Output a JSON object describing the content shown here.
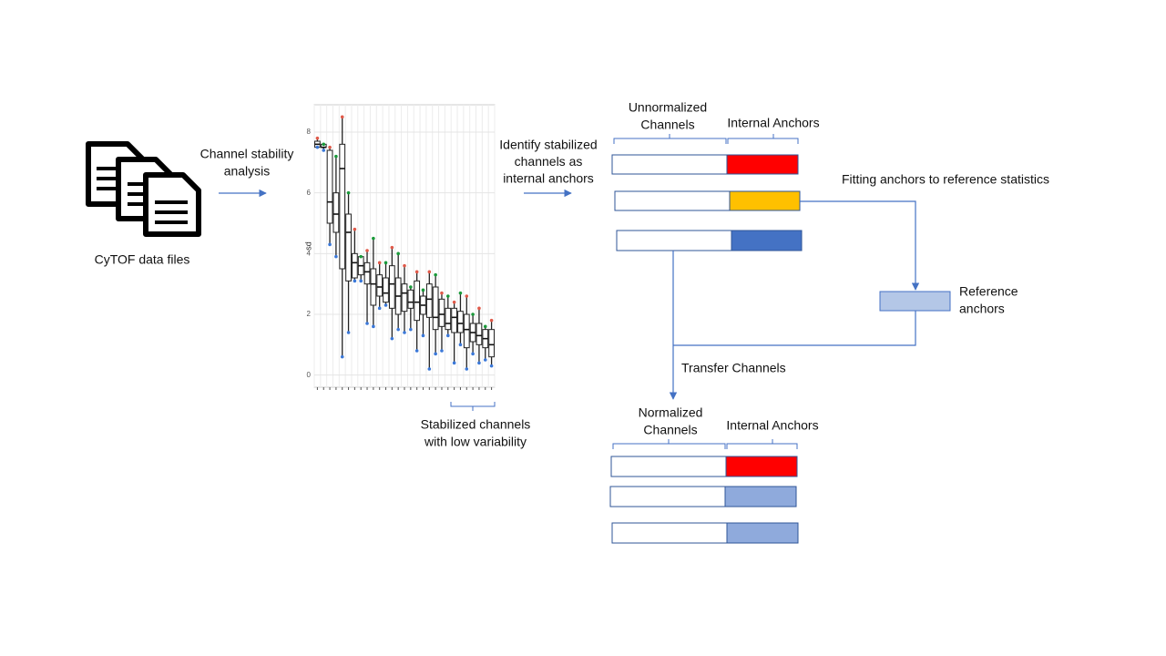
{
  "labels": {
    "files": "CyTOF data files",
    "stability": [
      "Channel stability",
      "analysis"
    ],
    "identify": [
      "Identify stabilized",
      "channels as",
      "internal anchors"
    ],
    "stabilized": [
      "Stabilized channels",
      "with low variability"
    ],
    "unnormalized": [
      "Unnormalized",
      "Channels"
    ],
    "anchors_top": "Internal Anchors",
    "fitting": "Fitting anchors to reference statistics",
    "reference": [
      "Reference",
      "anchors"
    ],
    "transfer": "Transfer Channels",
    "normalized": [
      "Normalized",
      "Channels"
    ],
    "anchors_bottom": "Internal Anchors"
  },
  "boxplot": {
    "type": "box",
    "y_label": "sd",
    "ylim": [
      -0.4,
      8.9
    ],
    "yticks": [
      0,
      2,
      4,
      6,
      8
    ],
    "boxes": [
      {
        "min": 7.5,
        "q1": 7.5,
        "median": 7.6,
        "q3": 7.7,
        "max": 7.8
      },
      {
        "min": 7.4,
        "q1": 7.5,
        "median": 7.5,
        "q3": 7.6,
        "max": 7.6
      },
      {
        "min": 4.3,
        "q1": 5.0,
        "median": 5.7,
        "q3": 7.4,
        "max": 7.5
      },
      {
        "min": 3.9,
        "q1": 4.7,
        "median": 5.3,
        "q3": 6.0,
        "max": 7.2
      },
      {
        "min": 0.6,
        "q1": 3.5,
        "median": 6.8,
        "q3": 7.6,
        "max": 8.5
      },
      {
        "min": 1.4,
        "q1": 3.1,
        "median": 4.7,
        "q3": 5.3,
        "max": 6.0
      },
      {
        "min": 3.1,
        "q1": 3.2,
        "median": 3.7,
        "q3": 4.0,
        "max": 4.8
      },
      {
        "min": 3.1,
        "q1": 3.3,
        "median": 3.6,
        "q3": 3.9,
        "max": 3.9
      },
      {
        "min": 1.7,
        "q1": 3.0,
        "median": 3.4,
        "q3": 3.7,
        "max": 4.1
      },
      {
        "min": 1.6,
        "q1": 2.3,
        "median": 3.0,
        "q3": 3.5,
        "max": 4.5
      },
      {
        "min": 2.2,
        "q1": 2.6,
        "median": 2.9,
        "q3": 3.3,
        "max": 3.7
      },
      {
        "min": 2.3,
        "q1": 2.4,
        "median": 2.7,
        "q3": 3.2,
        "max": 3.7
      },
      {
        "min": 1.2,
        "q1": 2.2,
        "median": 3.0,
        "q3": 3.6,
        "max": 4.2
      },
      {
        "min": 1.5,
        "q1": 2.0,
        "median": 2.6,
        "q3": 3.2,
        "max": 4.0
      },
      {
        "min": 1.4,
        "q1": 2.1,
        "median": 2.7,
        "q3": 3.0,
        "max": 3.6
      },
      {
        "min": 1.5,
        "q1": 2.2,
        "median": 2.4,
        "q3": 2.8,
        "max": 2.9
      },
      {
        "min": 0.8,
        "q1": 1.8,
        "median": 2.4,
        "q3": 3.1,
        "max": 3.4
      },
      {
        "min": 1.3,
        "q1": 2.0,
        "median": 2.3,
        "q3": 2.6,
        "max": 2.8
      },
      {
        "min": 0.2,
        "q1": 1.9,
        "median": 2.5,
        "q3": 3.0,
        "max": 3.4
      },
      {
        "min": 0.7,
        "q1": 1.5,
        "median": 1.9,
        "q3": 2.9,
        "max": 3.3
      },
      {
        "min": 0.8,
        "q1": 1.6,
        "median": 2.0,
        "q3": 2.5,
        "max": 2.7
      },
      {
        "min": 1.3,
        "q1": 1.5,
        "median": 1.7,
        "q3": 2.2,
        "max": 2.6
      },
      {
        "min": 0.4,
        "q1": 1.4,
        "median": 1.9,
        "q3": 2.2,
        "max": 2.4
      },
      {
        "min": 1.0,
        "q1": 1.4,
        "median": 1.7,
        "q3": 2.1,
        "max": 2.7
      },
      {
        "min": 0.2,
        "q1": 0.9,
        "median": 1.5,
        "q3": 2.0,
        "max": 2.6
      },
      {
        "min": 0.7,
        "q1": 1.1,
        "median": 1.4,
        "q3": 1.7,
        "max": 2.0
      },
      {
        "min": 0.4,
        "q1": 1.0,
        "median": 1.3,
        "q3": 1.7,
        "max": 2.2
      },
      {
        "min": 0.5,
        "q1": 0.9,
        "median": 1.2,
        "q3": 1.5,
        "max": 1.6
      },
      {
        "min": 0.3,
        "q1": 0.6,
        "median": 1.0,
        "q3": 1.5,
        "max": 1.8
      }
    ]
  }
}
